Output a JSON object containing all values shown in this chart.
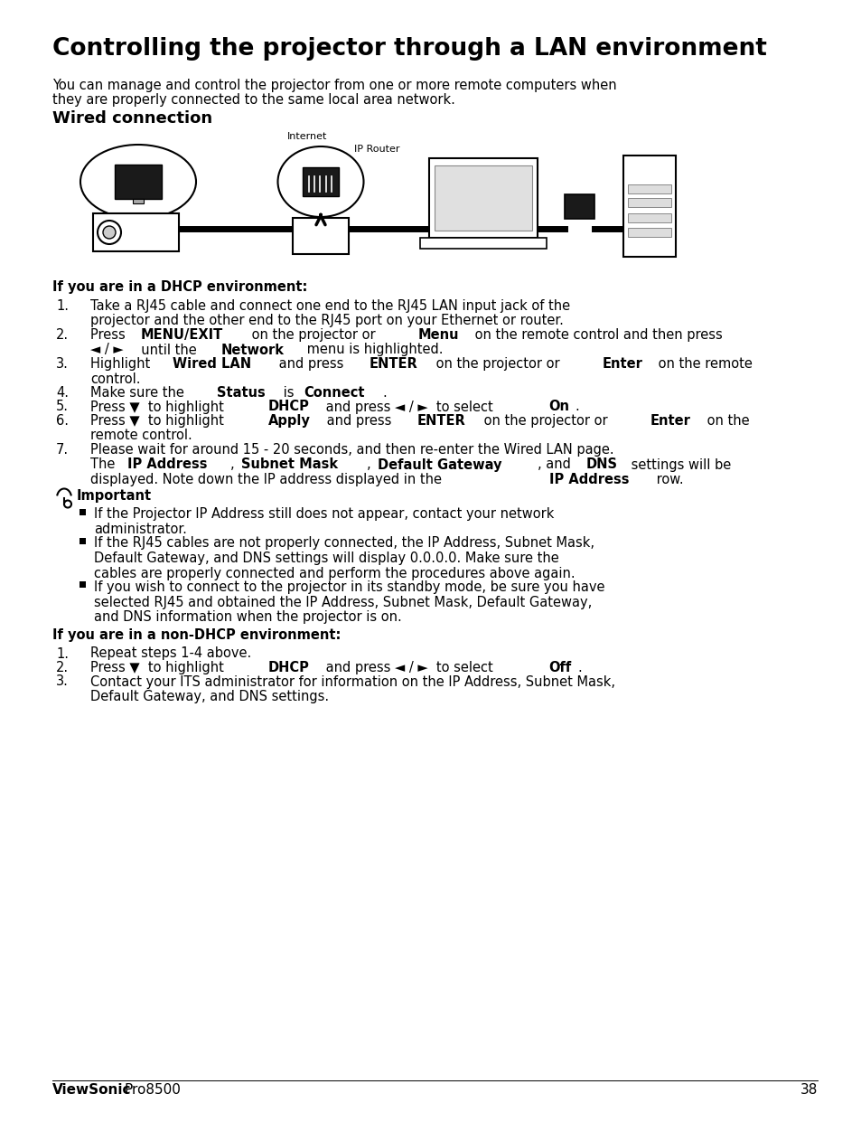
{
  "bg_color": "#ffffff",
  "title": "Controlling the projector through a LAN environment",
  "subtitle_line1": "You can manage and control the projector from one or more remote computers when",
  "subtitle_line2": "they are properly connected to the same local area network.",
  "section1_title": "Wired connection",
  "internet_label": "Internet",
  "ip_router_label": "IP Router",
  "dhcp_header": "If you are in a DHCP environment:",
  "dhcp_items": [
    [
      {
        "t": "Take a RJ45 cable and connect one end to the RJ45 LAN input jack of the\nprojector and the other end to the RJ45 port on your Ethernet or router.",
        "b": false
      }
    ],
    [
      {
        "t": "Press ",
        "b": false
      },
      {
        "t": "MENU/EXIT",
        "b": true
      },
      {
        "t": " on the projector or ",
        "b": false
      },
      {
        "t": "Menu",
        "b": true
      },
      {
        "t": " on the remote control and then press",
        "b": false
      },
      {
        "t": "\n◄ / ►",
        "b": false
      },
      {
        "t": "  until the ",
        "b": false
      },
      {
        "t": "Network",
        "b": true
      },
      {
        "t": " menu is highlighted.",
        "b": false
      }
    ],
    [
      {
        "t": "Highlight ",
        "b": false
      },
      {
        "t": "Wired LAN",
        "b": true
      },
      {
        "t": " and press ",
        "b": false
      },
      {
        "t": "ENTER",
        "b": true
      },
      {
        "t": " on the projector or ",
        "b": false
      },
      {
        "t": "Enter",
        "b": true
      },
      {
        "t": " on the remote\ncontrol.",
        "b": false
      }
    ],
    [
      {
        "t": "Make sure the ",
        "b": false
      },
      {
        "t": "Status",
        "b": true
      },
      {
        "t": " is ",
        "b": false
      },
      {
        "t": "Connect",
        "b": true
      },
      {
        "t": ".",
        "b": false
      }
    ],
    [
      {
        "t": "Press ▼  to highlight ",
        "b": false
      },
      {
        "t": "DHCP",
        "b": true
      },
      {
        "t": " and press ◄ / ►  to select ",
        "b": false
      },
      {
        "t": "On",
        "b": true
      },
      {
        "t": ".",
        "b": false
      }
    ],
    [
      {
        "t": "Press ▼  to highlight ",
        "b": false
      },
      {
        "t": "Apply",
        "b": true
      },
      {
        "t": " and press ",
        "b": false
      },
      {
        "t": "ENTER",
        "b": true
      },
      {
        "t": " on the projector or ",
        "b": false
      },
      {
        "t": "Enter",
        "b": true
      },
      {
        "t": " on the\nremote control.",
        "b": false
      }
    ],
    [
      {
        "t": "Please wait for around 15 - 20 seconds, and then re-enter the Wired LAN page.\nThe ",
        "b": false
      },
      {
        "t": "IP Address",
        "b": true
      },
      {
        "t": ", ",
        "b": false
      },
      {
        "t": "Subnet Mask",
        "b": true
      },
      {
        "t": ", ",
        "b": false
      },
      {
        "t": "Default Gateway",
        "b": true
      },
      {
        "t": ", and ",
        "b": false
      },
      {
        "t": "DNS",
        "b": true
      },
      {
        "t": " settings will be\ndisplayed. Note down the IP address displayed in the ",
        "b": false
      },
      {
        "t": "IP Address",
        "b": true
      },
      {
        "t": " row.",
        "b": false
      }
    ]
  ],
  "dhcp_nums": [
    "1.",
    "2.",
    "3.",
    "4.",
    "5.",
    "6.",
    "7."
  ],
  "important_label": "Important",
  "important_bullets": [
    "If the Projector IP Address still does not appear, contact your network\nadministrator.",
    "If the RJ45 cables are not properly connected, the IP Address, Subnet Mask,\nDefault Gateway, and DNS settings will display 0.0.0.0. Make sure the\ncables are properly connected and perform the procedures above again.",
    "If you wish to connect to the projector in its standby mode, be sure you have\nselected RJ45 and obtained the IP Address, Subnet Mask, Default Gateway,\nand DNS information when the projector is on."
  ],
  "nondhcp_header": "If you are in a non-DHCP environment:",
  "nondhcp_items": [
    [
      {
        "t": "Repeat steps 1-4 above.",
        "b": false
      }
    ],
    [
      {
        "t": "Press ▼  to highlight ",
        "b": false
      },
      {
        "t": "DHCP",
        "b": true
      },
      {
        "t": " and press ◄ / ►  to select ",
        "b": false
      },
      {
        "t": "Off",
        "b": true
      },
      {
        "t": ".",
        "b": false
      }
    ],
    [
      {
        "t": "Contact your ITS administrator for information on the IP Address, Subnet Mask,\nDefault Gateway, and DNS settings.",
        "b": false
      }
    ]
  ],
  "nondhcp_nums": [
    "1.",
    "2.",
    "3."
  ],
  "footer_brand": "ViewSonic",
  "footer_model": "Pro8500",
  "footer_page": "38"
}
